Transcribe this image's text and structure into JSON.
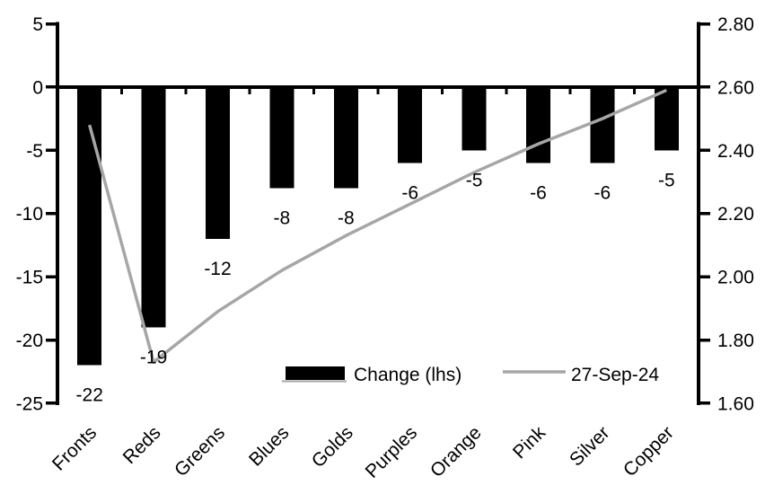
{
  "chart_data": {
    "type": "bar",
    "title": "",
    "categories": [
      "Fronts",
      "Reds",
      "Greens",
      "Blues",
      "Golds",
      "Purples",
      "Orange",
      "Pink",
      "Silver",
      "Copper"
    ],
    "series": [
      {
        "name": "Change (lhs)",
        "type": "bar",
        "axis": "left",
        "color": "#000000",
        "values": [
          -22,
          -19,
          -12,
          -8,
          -8,
          -6,
          -5,
          -6,
          -6,
          -5
        ],
        "data_labels": [
          "-22",
          "-19",
          "-12",
          "-8",
          "-8",
          "-6",
          "-5",
          "-6",
          "-6",
          "-5"
        ]
      },
      {
        "name": "27-Sep-24",
        "type": "line",
        "axis": "right",
        "color": "#A6A6A6",
        "values": [
          2.48,
          1.73,
          1.89,
          2.02,
          2.13,
          2.23,
          2.33,
          2.42,
          2.5,
          2.59
        ]
      }
    ],
    "left_axis": {
      "min": -25,
      "max": 5,
      "tick_values": [
        5,
        0,
        -5,
        -10,
        -15,
        -20,
        -25
      ],
      "tick_labels": [
        "5",
        "0",
        "-5",
        "-10",
        "-15",
        "-20",
        "-25"
      ]
    },
    "right_axis": {
      "min": 1.6,
      "max": 2.8,
      "tick_values": [
        2.8,
        2.6,
        2.4,
        2.2,
        2.0,
        1.8,
        1.6
      ],
      "tick_labels": [
        "2.80",
        "2.60",
        "2.40",
        "2.20",
        "2.00",
        "1.80",
        "1.60"
      ]
    },
    "legend": {
      "position": "bottom-center-overlay",
      "entries": [
        "Change (lhs)",
        "27-Sep-24"
      ]
    },
    "grid": false,
    "colors": {
      "background": "#FFFFFF",
      "axis": "#000000",
      "bar": "#000000",
      "line": "#A6A6A6",
      "text": "#000000"
    }
  }
}
